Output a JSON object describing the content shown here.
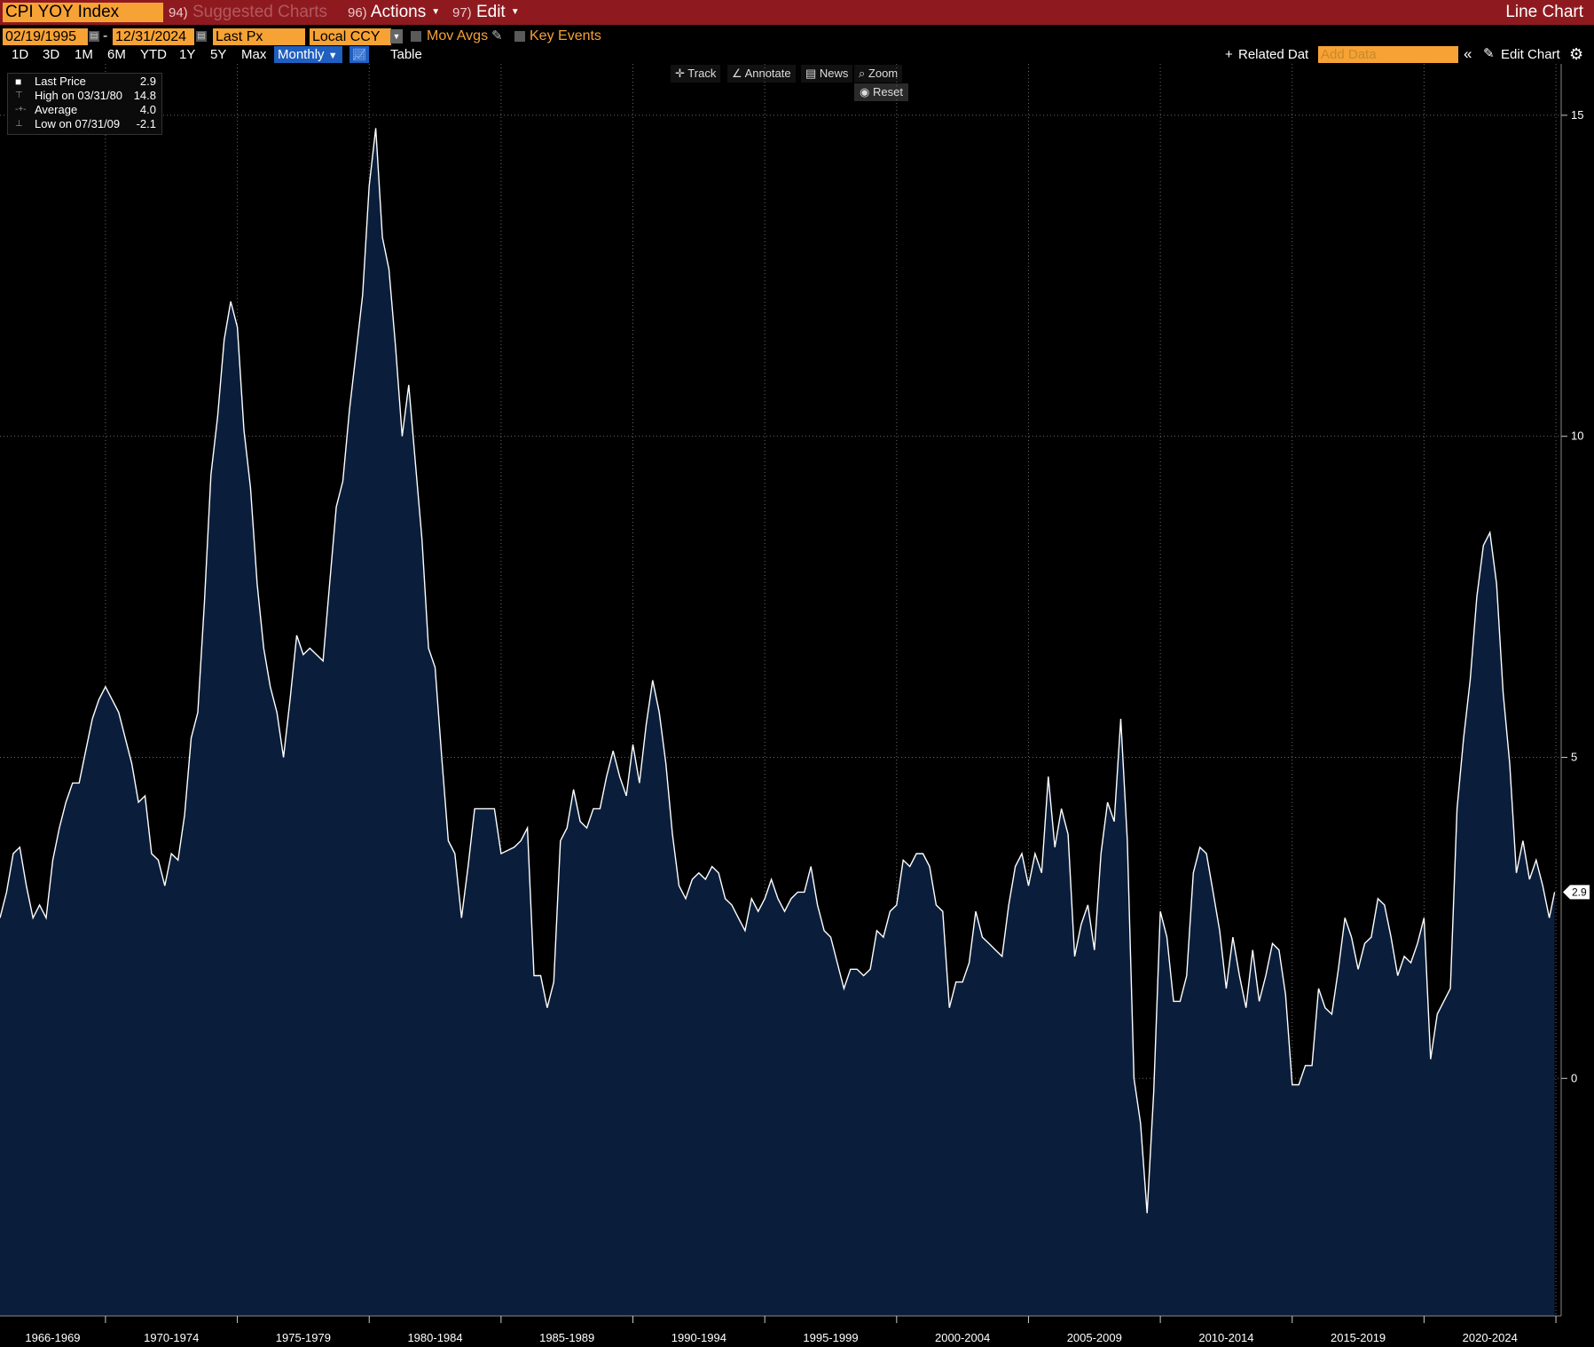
{
  "header": {
    "security": "CPI YOY Index",
    "suggested": {
      "num": "94)",
      "label": "Suggested Charts"
    },
    "actions": {
      "num": "96)",
      "label": "Actions"
    },
    "edit": {
      "num": "97)",
      "label": "Edit"
    },
    "chart_type": "Line Chart"
  },
  "toolbar": {
    "start_date": "02/19/1995",
    "end_date": "12/31/2024",
    "date_sep": "-",
    "field": "Last Px",
    "currency": "Local CCY",
    "mov_avgs": "Mov Avgs",
    "key_events": "Key Events",
    "periods": [
      "1D",
      "3D",
      "1M",
      "6M",
      "YTD",
      "1Y",
      "5Y",
      "Max"
    ],
    "frequency": "Monthly",
    "table": "Table",
    "related": "Related Dat",
    "add_data": "Add Data",
    "edit_chart": "Edit Chart"
  },
  "tools": [
    "Track",
    "Annotate",
    "News",
    "Zoom"
  ],
  "reset": "Reset",
  "legend": {
    "last_label": "Last Price",
    "last_value": "2.9",
    "high_label": "High on 03/31/80",
    "high_value": "14.8",
    "avg_label": "Average",
    "avg_value": "4.0",
    "low_label": "Low on 07/31/09",
    "low_value": "-2.1"
  },
  "colors": {
    "accent": "#f7a234",
    "titlebar": "#8e1a20",
    "line": "#ffffff",
    "fill": "#0a1e3c"
  },
  "chart_data": {
    "type": "area",
    "title": "CPI YOY Index",
    "series": [
      {
        "name": "Last Price"
      }
    ],
    "x_tick_labels": [
      "1966-1969",
      "1970-1974",
      "1975-1979",
      "1980-1984",
      "1985-1989",
      "1990-1994",
      "1995-1999",
      "2000-2004",
      "2005-2009",
      "2010-2014",
      "2015-2019",
      "2020-2024"
    ],
    "y_ticks": [
      0,
      5,
      10,
      15
    ],
    "ylim": [
      -3.7,
      15.8
    ],
    "xlim": [
      1966.0,
      2025.2
    ],
    "last_value_label": "2.9",
    "grid": true,
    "points": [
      [
        1966.0,
        2.5
      ],
      [
        1966.25,
        2.9
      ],
      [
        1966.5,
        3.5
      ],
      [
        1966.75,
        3.6
      ],
      [
        1967.0,
        3.0
      ],
      [
        1967.25,
        2.5
      ],
      [
        1967.5,
        2.7
      ],
      [
        1967.75,
        2.5
      ],
      [
        1968.0,
        3.4
      ],
      [
        1968.25,
        3.9
      ],
      [
        1968.5,
        4.3
      ],
      [
        1968.75,
        4.6
      ],
      [
        1969.0,
        4.6
      ],
      [
        1969.25,
        5.1
      ],
      [
        1969.5,
        5.6
      ],
      [
        1969.75,
        5.9
      ],
      [
        1970.0,
        6.1
      ],
      [
        1970.25,
        5.9
      ],
      [
        1970.5,
        5.7
      ],
      [
        1970.75,
        5.3
      ],
      [
        1971.0,
        4.9
      ],
      [
        1971.25,
        4.3
      ],
      [
        1971.5,
        4.4
      ],
      [
        1971.75,
        3.5
      ],
      [
        1972.0,
        3.4
      ],
      [
        1972.25,
        3.0
      ],
      [
        1972.5,
        3.5
      ],
      [
        1972.75,
        3.4
      ],
      [
        1973.0,
        4.1
      ],
      [
        1973.25,
        5.3
      ],
      [
        1973.5,
        5.7
      ],
      [
        1973.75,
        7.4
      ],
      [
        1974.0,
        9.4
      ],
      [
        1974.25,
        10.3
      ],
      [
        1974.5,
        11.5
      ],
      [
        1974.75,
        12.1
      ],
      [
        1975.0,
        11.7
      ],
      [
        1975.25,
        10.1
      ],
      [
        1975.5,
        9.2
      ],
      [
        1975.75,
        7.7
      ],
      [
        1976.0,
        6.7
      ],
      [
        1976.25,
        6.1
      ],
      [
        1976.5,
        5.7
      ],
      [
        1976.75,
        5.0
      ],
      [
        1977.0,
        5.9
      ],
      [
        1977.25,
        6.9
      ],
      [
        1977.5,
        6.6
      ],
      [
        1977.75,
        6.7
      ],
      [
        1978.0,
        6.6
      ],
      [
        1978.25,
        6.5
      ],
      [
        1978.5,
        7.7
      ],
      [
        1978.75,
        8.9
      ],
      [
        1979.0,
        9.3
      ],
      [
        1979.25,
        10.4
      ],
      [
        1979.5,
        11.3
      ],
      [
        1979.75,
        12.2
      ],
      [
        1980.0,
        13.9
      ],
      [
        1980.25,
        14.8
      ],
      [
        1980.5,
        13.1
      ],
      [
        1980.75,
        12.6
      ],
      [
        1981.0,
        11.4
      ],
      [
        1981.25,
        10.0
      ],
      [
        1981.5,
        10.8
      ],
      [
        1981.75,
        9.6
      ],
      [
        1982.0,
        8.4
      ],
      [
        1982.25,
        6.7
      ],
      [
        1982.5,
        6.4
      ],
      [
        1982.75,
        5.0
      ],
      [
        1983.0,
        3.7
      ],
      [
        1983.25,
        3.5
      ],
      [
        1983.5,
        2.5
      ],
      [
        1983.75,
        3.3
      ],
      [
        1984.0,
        4.2
      ],
      [
        1984.5,
        4.2
      ],
      [
        1984.75,
        4.2
      ],
      [
        1985.0,
        3.5
      ],
      [
        1985.5,
        3.6
      ],
      [
        1985.75,
        3.7
      ],
      [
        1986.0,
        3.9
      ],
      [
        1986.25,
        1.6
      ],
      [
        1986.5,
        1.6
      ],
      [
        1986.75,
        1.1
      ],
      [
        1987.0,
        1.5
      ],
      [
        1987.25,
        3.7
      ],
      [
        1987.5,
        3.9
      ],
      [
        1987.75,
        4.5
      ],
      [
        1988.0,
        4.0
      ],
      [
        1988.25,
        3.9
      ],
      [
        1988.5,
        4.2
      ],
      [
        1988.75,
        4.2
      ],
      [
        1989.0,
        4.7
      ],
      [
        1989.25,
        5.1
      ],
      [
        1989.5,
        4.7
      ],
      [
        1989.75,
        4.4
      ],
      [
        1990.0,
        5.2
      ],
      [
        1990.25,
        4.6
      ],
      [
        1990.5,
        5.5
      ],
      [
        1990.75,
        6.2
      ],
      [
        1991.0,
        5.7
      ],
      [
        1991.25,
        4.9
      ],
      [
        1991.5,
        3.8
      ],
      [
        1991.75,
        3.0
      ],
      [
        1992.0,
        2.8
      ],
      [
        1992.25,
        3.1
      ],
      [
        1992.5,
        3.2
      ],
      [
        1992.75,
        3.1
      ],
      [
        1993.0,
        3.3
      ],
      [
        1993.25,
        3.2
      ],
      [
        1993.5,
        2.8
      ],
      [
        1993.75,
        2.7
      ],
      [
        1994.0,
        2.5
      ],
      [
        1994.25,
        2.3
      ],
      [
        1994.5,
        2.8
      ],
      [
        1994.75,
        2.6
      ],
      [
        1995.0,
        2.8
      ],
      [
        1995.25,
        3.1
      ],
      [
        1995.5,
        2.8
      ],
      [
        1995.75,
        2.6
      ],
      [
        1996.0,
        2.8
      ],
      [
        1996.25,
        2.9
      ],
      [
        1996.5,
        2.9
      ],
      [
        1996.75,
        3.3
      ],
      [
        1997.0,
        2.7
      ],
      [
        1997.25,
        2.3
      ],
      [
        1997.5,
        2.2
      ],
      [
        1997.75,
        1.8
      ],
      [
        1998.0,
        1.4
      ],
      [
        1998.25,
        1.7
      ],
      [
        1998.5,
        1.7
      ],
      [
        1998.75,
        1.6
      ],
      [
        1999.0,
        1.7
      ],
      [
        1999.25,
        2.3
      ],
      [
        1999.5,
        2.2
      ],
      [
        1999.75,
        2.6
      ],
      [
        2000.0,
        2.7
      ],
      [
        2000.25,
        3.4
      ],
      [
        2000.5,
        3.3
      ],
      [
        2000.75,
        3.5
      ],
      [
        2001.0,
        3.5
      ],
      [
        2001.25,
        3.3
      ],
      [
        2001.5,
        2.7
      ],
      [
        2001.75,
        2.6
      ],
      [
        2002.0,
        1.1
      ],
      [
        2002.25,
        1.5
      ],
      [
        2002.5,
        1.5
      ],
      [
        2002.75,
        1.8
      ],
      [
        2003.0,
        2.6
      ],
      [
        2003.25,
        2.2
      ],
      [
        2003.5,
        2.1
      ],
      [
        2003.75,
        2.0
      ],
      [
        2004.0,
        1.9
      ],
      [
        2004.25,
        2.7
      ],
      [
        2004.5,
        3.3
      ],
      [
        2004.75,
        3.5
      ],
      [
        2005.0,
        3.0
      ],
      [
        2005.25,
        3.5
      ],
      [
        2005.5,
        3.2
      ],
      [
        2005.75,
        4.7
      ],
      [
        2006.0,
        3.6
      ],
      [
        2006.25,
        4.2
      ],
      [
        2006.5,
        3.8
      ],
      [
        2006.75,
        1.9
      ],
      [
        2007.0,
        2.4
      ],
      [
        2007.25,
        2.7
      ],
      [
        2007.5,
        2.0
      ],
      [
        2007.75,
        3.5
      ],
      [
        2008.0,
        4.3
      ],
      [
        2008.25,
        4.0
      ],
      [
        2008.5,
        5.6
      ],
      [
        2008.75,
        3.7
      ],
      [
        2009.0,
        0.0
      ],
      [
        2009.25,
        -0.7
      ],
      [
        2009.5,
        -2.1
      ],
      [
        2009.75,
        -0.2
      ],
      [
        2010.0,
        2.6
      ],
      [
        2010.25,
        2.2
      ],
      [
        2010.5,
        1.2
      ],
      [
        2010.75,
        1.2
      ],
      [
        2011.0,
        1.6
      ],
      [
        2011.25,
        3.2
      ],
      [
        2011.5,
        3.6
      ],
      [
        2011.75,
        3.5
      ],
      [
        2012.0,
        2.9
      ],
      [
        2012.25,
        2.3
      ],
      [
        2012.5,
        1.4
      ],
      [
        2012.75,
        2.2
      ],
      [
        2013.0,
        1.6
      ],
      [
        2013.25,
        1.1
      ],
      [
        2013.5,
        2.0
      ],
      [
        2013.75,
        1.2
      ],
      [
        2014.0,
        1.6
      ],
      [
        2014.25,
        2.1
      ],
      [
        2014.5,
        2.0
      ],
      [
        2014.75,
        1.3
      ],
      [
        2015.0,
        -0.1
      ],
      [
        2015.25,
        -0.1
      ],
      [
        2015.5,
        0.2
      ],
      [
        2015.75,
        0.2
      ],
      [
        2016.0,
        1.4
      ],
      [
        2016.25,
        1.1
      ],
      [
        2016.5,
        1.0
      ],
      [
        2016.75,
        1.7
      ],
      [
        2017.0,
        2.5
      ],
      [
        2017.25,
        2.2
      ],
      [
        2017.5,
        1.7
      ],
      [
        2017.75,
        2.1
      ],
      [
        2018.0,
        2.2
      ],
      [
        2018.25,
        2.8
      ],
      [
        2018.5,
        2.7
      ],
      [
        2018.75,
        2.2
      ],
      [
        2019.0,
        1.6
      ],
      [
        2019.25,
        1.9
      ],
      [
        2019.5,
        1.8
      ],
      [
        2019.75,
        2.1
      ],
      [
        2020.0,
        2.5
      ],
      [
        2020.25,
        0.3
      ],
      [
        2020.5,
        1.0
      ],
      [
        2020.75,
        1.2
      ],
      [
        2021.0,
        1.4
      ],
      [
        2021.25,
        4.2
      ],
      [
        2021.5,
        5.3
      ],
      [
        2021.75,
        6.2
      ],
      [
        2022.0,
        7.5
      ],
      [
        2022.25,
        8.3
      ],
      [
        2022.5,
        8.5
      ],
      [
        2022.75,
        7.7
      ],
      [
        2023.0,
        6.0
      ],
      [
        2023.25,
        4.9
      ],
      [
        2023.5,
        3.2
      ],
      [
        2023.75,
        3.7
      ],
      [
        2024.0,
        3.1
      ],
      [
        2024.25,
        3.4
      ],
      [
        2024.5,
        3.0
      ],
      [
        2024.75,
        2.5
      ],
      [
        2024.95,
        2.9
      ]
    ]
  }
}
